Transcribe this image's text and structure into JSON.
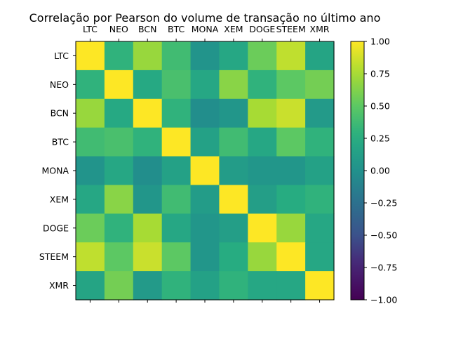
{
  "chart_data": {
    "type": "heatmap",
    "title": "Correlação por Pearson do volume de transação no último ano",
    "xlabel": "",
    "ylabel": "",
    "labels": [
      "LTC",
      "NEO",
      "BCN",
      "BTC",
      "MONA",
      "XEM",
      "DOGE",
      "STEEM",
      "XMR"
    ],
    "matrix": [
      [
        1.0,
        0.3,
        0.7,
        0.38,
        0.03,
        0.2,
        0.55,
        0.82,
        0.18
      ],
      [
        0.3,
        1.0,
        0.22,
        0.42,
        0.2,
        0.65,
        0.3,
        0.5,
        0.58
      ],
      [
        0.7,
        0.22,
        1.0,
        0.3,
        -0.02,
        0.05,
        0.75,
        0.85,
        0.08
      ],
      [
        0.38,
        0.42,
        0.3,
        1.0,
        0.15,
        0.38,
        0.2,
        0.5,
        0.3
      ],
      [
        0.03,
        0.2,
        -0.02,
        0.15,
        1.0,
        0.1,
        0.05,
        0.05,
        0.15
      ],
      [
        0.2,
        0.65,
        0.05,
        0.38,
        0.1,
        1.0,
        0.12,
        0.25,
        0.3
      ],
      [
        0.55,
        0.3,
        0.75,
        0.2,
        0.05,
        0.12,
        1.0,
        0.7,
        0.2
      ],
      [
        0.82,
        0.5,
        0.85,
        0.5,
        0.05,
        0.25,
        0.7,
        1.0,
        0.2
      ],
      [
        0.18,
        0.58,
        0.08,
        0.3,
        0.15,
        0.3,
        0.2,
        0.2,
        1.0
      ]
    ],
    "colorbar": {
      "range": [
        -1.0,
        1.0
      ],
      "ticks": [
        1.0,
        0.75,
        0.5,
        0.25,
        0.0,
        -0.25,
        -0.5,
        -0.75,
        -1.0
      ],
      "tick_labels": [
        "1.00",
        "0.75",
        "0.50",
        "0.25",
        "0.00",
        "−0.25",
        "−0.50",
        "−0.75",
        "−1.00"
      ],
      "colormap": "viridis"
    },
    "grid": false
  }
}
